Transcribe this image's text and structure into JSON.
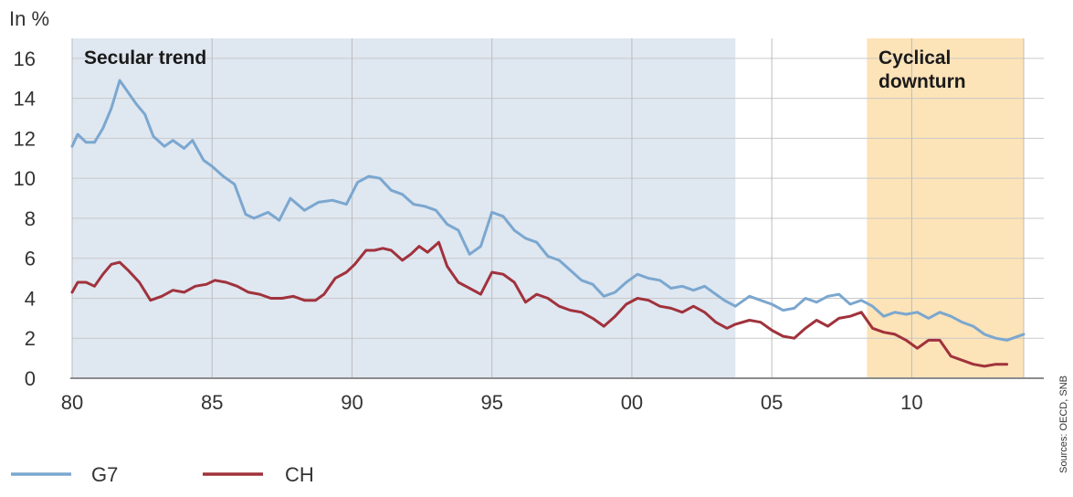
{
  "chart_data": {
    "type": "line",
    "ylabel": "In %",
    "ylim": [
      0,
      17
    ],
    "yticks": [
      0,
      2,
      4,
      6,
      8,
      10,
      12,
      14,
      16
    ],
    "xlim": [
      1980,
      2014
    ],
    "xticks": [
      {
        "value": 1980,
        "label": "80"
      },
      {
        "value": 1985,
        "label": "85"
      },
      {
        "value": 1990,
        "label": "90"
      },
      {
        "value": 1995,
        "label": "95"
      },
      {
        "value": 2000,
        "label": "00"
      },
      {
        "value": 2005,
        "label": "05"
      },
      {
        "value": 2010,
        "label": "10"
      }
    ],
    "grid": true,
    "legend_position": "bottom-left",
    "source": "Sources: OECD, SNB",
    "shaded_regions": [
      {
        "label": "Secular trend",
        "start": 1980,
        "end": 2003.7,
        "color": "#dfe7f1"
      },
      {
        "label": "Cyclical downturn",
        "start": 2008.4,
        "end": 2014,
        "color": "#fde3b8"
      }
    ],
    "series": [
      {
        "name": "G7",
        "color": "#7ba7cf",
        "x": [
          1980,
          1980.2,
          1980.5,
          1980.8,
          1981.1,
          1981.4,
          1981.7,
          1982,
          1982.3,
          1982.6,
          1982.9,
          1983.3,
          1983.6,
          1984,
          1984.3,
          1984.7,
          1985,
          1985.4,
          1985.8,
          1986.2,
          1986.5,
          1987,
          1987.4,
          1987.8,
          1988.3,
          1988.8,
          1989.3,
          1989.8,
          1990.2,
          1990.6,
          1991,
          1991.4,
          1991.8,
          1992.2,
          1992.6,
          1993,
          1993.4,
          1993.8,
          1994.2,
          1994.6,
          1995,
          1995.4,
          1995.8,
          1996.2,
          1996.6,
          1997,
          1997.4,
          1997.8,
          1998.2,
          1998.6,
          1999,
          1999.4,
          1999.8,
          2000.2,
          2000.6,
          2001,
          2001.4,
          2001.8,
          2002.2,
          2002.6,
          2003,
          2003.3,
          2003.7,
          2004.2,
          2004.6,
          2005,
          2005.4,
          2005.8,
          2006.2,
          2006.6,
          2007,
          2007.4,
          2007.8,
          2008.2,
          2008.6,
          2009,
          2009.4,
          2009.8,
          2010.2,
          2010.6,
          2011,
          2011.4,
          2011.8,
          2012.2,
          2012.6,
          2013,
          2013.4,
          2014
        ],
        "values": [
          11.6,
          12.2,
          11.8,
          11.8,
          12.5,
          13.5,
          14.9,
          14.3,
          13.7,
          13.2,
          12.1,
          11.6,
          11.9,
          11.5,
          11.9,
          10.9,
          10.6,
          10.1,
          9.7,
          8.2,
          8.0,
          8.3,
          7.9,
          9.0,
          8.4,
          8.8,
          8.9,
          8.7,
          9.8,
          10.1,
          10.0,
          9.4,
          9.2,
          8.7,
          8.6,
          8.4,
          7.7,
          7.4,
          6.2,
          6.6,
          8.3,
          8.1,
          7.4,
          7.0,
          6.8,
          6.1,
          5.9,
          5.4,
          4.9,
          4.7,
          4.1,
          4.3,
          4.8,
          5.2,
          5.0,
          4.9,
          4.5,
          4.6,
          4.4,
          4.6,
          4.2,
          3.9,
          3.6,
          4.1,
          3.9,
          3.7,
          3.4,
          3.5,
          4.0,
          3.8,
          4.1,
          4.2,
          3.7,
          3.9,
          3.6,
          3.1,
          3.3,
          3.2,
          3.3,
          3.0,
          3.3,
          3.1,
          2.8,
          2.6,
          2.2,
          2.0,
          1.9,
          2.2
        ]
      },
      {
        "name": "CH",
        "color": "#a0323c",
        "x": [
          1980,
          1980.2,
          1980.5,
          1980.8,
          1981.1,
          1981.4,
          1981.7,
          1982,
          1982.4,
          1982.8,
          1983.2,
          1983.6,
          1984,
          1984.4,
          1984.8,
          1985.1,
          1985.5,
          1985.9,
          1986.3,
          1986.7,
          1987.1,
          1987.5,
          1987.9,
          1988.3,
          1988.7,
          1989,
          1989.4,
          1989.8,
          1990.1,
          1990.5,
          1990.8,
          1991.1,
          1991.4,
          1991.8,
          1992.1,
          1992.4,
          1992.7,
          1993.1,
          1993.4,
          1993.8,
          1994.2,
          1994.6,
          1995,
          1995.4,
          1995.8,
          1996.2,
          1996.6,
          1997,
          1997.4,
          1997.8,
          1998.2,
          1998.6,
          1999,
          1999.4,
          1999.8,
          2000.2,
          2000.6,
          2001,
          2001.4,
          2001.8,
          2002.2,
          2002.6,
          2003,
          2003.4,
          2003.7,
          2004.2,
          2004.6,
          2005,
          2005.4,
          2005.8,
          2006.2,
          2006.6,
          2007,
          2007.4,
          2007.8,
          2008.2,
          2008.6,
          2009,
          2009.4,
          2009.8,
          2010.2,
          2010.6,
          2011,
          2011.4,
          2011.8,
          2012.2,
          2012.6,
          2013,
          2013.4
        ],
        "values": [
          4.3,
          4.8,
          4.8,
          4.6,
          5.2,
          5.7,
          5.8,
          5.4,
          4.8,
          3.9,
          4.1,
          4.4,
          4.3,
          4.6,
          4.7,
          4.9,
          4.8,
          4.6,
          4.3,
          4.2,
          4.0,
          4.0,
          4.1,
          3.9,
          3.9,
          4.2,
          5.0,
          5.3,
          5.7,
          6.4,
          6.4,
          6.5,
          6.4,
          5.9,
          6.2,
          6.6,
          6.3,
          6.8,
          5.6,
          4.8,
          4.5,
          4.2,
          5.3,
          5.2,
          4.8,
          3.8,
          4.2,
          4.0,
          3.6,
          3.4,
          3.3,
          3.0,
          2.6,
          3.1,
          3.7,
          4.0,
          3.9,
          3.6,
          3.5,
          3.3,
          3.6,
          3.3,
          2.8,
          2.5,
          2.7,
          2.9,
          2.8,
          2.4,
          2.1,
          2.0,
          2.5,
          2.9,
          2.6,
          3.0,
          3.1,
          3.3,
          2.5,
          2.3,
          2.2,
          1.9,
          1.5,
          1.9,
          1.9,
          1.1,
          0.9,
          0.7,
          0.6,
          0.7,
          0.7
        ]
      }
    ]
  }
}
